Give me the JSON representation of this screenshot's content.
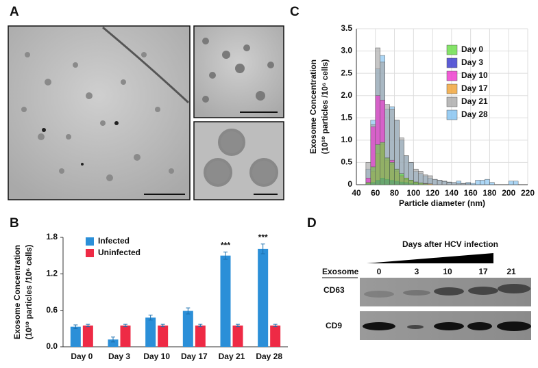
{
  "panel_labels": [
    "A",
    "B",
    "C",
    "D"
  ],
  "chart_data": [
    {
      "type": "bar",
      "ylabel": [
        "Exosome Concentration",
        "(10¹⁰ particles /10⁶ cells)"
      ],
      "categories": [
        "Day 0",
        "Day 3",
        "Day 10",
        "Day 17",
        "Day 21",
        "Day 28"
      ],
      "series": [
        {
          "name": "Infected",
          "color": "#2b8fd8",
          "values": [
            0.33,
            0.12,
            0.48,
            0.59,
            1.5,
            1.61
          ],
          "errors": [
            0.03,
            0.04,
            0.04,
            0.05,
            0.06,
            0.08
          ]
        },
        {
          "name": "Uninfected",
          "color": "#ee2a45",
          "values": [
            0.35,
            0.35,
            0.35,
            0.35,
            0.35,
            0.35
          ],
          "errors": [
            0.02,
            0.02,
            0.02,
            0.02,
            0.02,
            0.02
          ]
        }
      ],
      "annotations": [
        {
          "category": "Day 21",
          "text": "***"
        },
        {
          "category": "Day 28",
          "text": "***"
        }
      ],
      "ylim": [
        0,
        1.8
      ],
      "yticks": [
        {
          "value": 0,
          "label": "0.0"
        },
        0.6,
        1.2,
        1.8
      ],
      "legend": "upper left"
    },
    {
      "type": "histogram",
      "xlabel": "Particle diameter (nm)",
      "ylabel": [
        "Exosome Concentration",
        "(10¹⁰ particles /10⁶ cells)"
      ],
      "bins": [
        50,
        55,
        60,
        65,
        70,
        75,
        80,
        85,
        90,
        95,
        100,
        105,
        110,
        115,
        120,
        125,
        130,
        135,
        140,
        145,
        150,
        155,
        160,
        165,
        170,
        175,
        180,
        185,
        190,
        195,
        200,
        205,
        210
      ],
      "series": [
        {
          "name": "Day 0",
          "color": "#66dd44",
          "values": [
            0.05,
            0.4,
            0.9,
            0.95,
            0.6,
            0.5,
            0.35,
            0.25,
            0.15,
            0.1,
            0.06,
            0.04,
            0.02,
            0,
            0,
            0,
            0,
            0,
            0,
            0,
            0,
            0,
            0,
            0,
            0,
            0,
            0,
            0,
            0,
            0,
            0,
            0
          ]
        },
        {
          "name": "Day 3",
          "color": "#3333cc",
          "values": [
            0.02,
            0.05,
            0.1,
            0.15,
            0.12,
            0.1,
            0.08,
            0.06,
            0.05,
            0.03,
            0.02,
            0,
            0,
            0,
            0,
            0,
            0,
            0,
            0,
            0,
            0,
            0,
            0,
            0,
            0,
            0,
            0,
            0,
            0,
            0,
            0,
            0
          ]
        },
        {
          "name": "Day 10",
          "color": "#ee33cc",
          "values": [
            0.15,
            1.3,
            2.0,
            1.9,
            0.6,
            0.55,
            0.35,
            0.2,
            0.12,
            0.08,
            0.05,
            0.03,
            0.02,
            0,
            0,
            0,
            0,
            0,
            0,
            0,
            0,
            0,
            0,
            0,
            0,
            0,
            0,
            0,
            0,
            0,
            0,
            0
          ]
        },
        {
          "name": "Day 17",
          "color": "#f0a030",
          "values": [
            0.05,
            0.3,
            0.7,
            0.9,
            0.55,
            0.45,
            0.3,
            0.2,
            0.15,
            0.1,
            0.06,
            0.04,
            0.03,
            0.02,
            0,
            0,
            0,
            0,
            0,
            0,
            0,
            0,
            0,
            0,
            0,
            0,
            0,
            0,
            0,
            0,
            0,
            0
          ]
        },
        {
          "name": "Day 21",
          "color": "#a8a8a8",
          "values": [
            0.5,
            1.35,
            3.07,
            2.75,
            1.8,
            1.7,
            1.45,
            1.05,
            0.65,
            0.5,
            0.35,
            0.3,
            0.22,
            0.2,
            0.12,
            0.1,
            0.07,
            0.05,
            0.05,
            0.03,
            0.02,
            0.02,
            0,
            0,
            0,
            0,
            0,
            0,
            0,
            0,
            0,
            0
          ]
        },
        {
          "name": "Day 28",
          "color": "#80c0f0",
          "values": [
            0.35,
            1.45,
            2.6,
            2.9,
            1.7,
            1.75,
            1.45,
            1.0,
            0.65,
            0.5,
            0.3,
            0.25,
            0.2,
            0.15,
            0.12,
            0.1,
            0.08,
            0.06,
            0.05,
            0.08,
            0.03,
            0.05,
            0.03,
            0.1,
            0.1,
            0.12,
            0.05,
            0,
            0,
            0,
            0.08,
            0.08
          ]
        }
      ],
      "xlim": [
        40,
        220
      ],
      "xticks": [
        40,
        60,
        80,
        100,
        120,
        140,
        160,
        180,
        200,
        220
      ],
      "ylim": [
        0,
        3.5
      ],
      "yticks": [
        0,
        0.5,
        {
          "value": 1,
          "label": "1.0"
        },
        1.5,
        {
          "value": 2,
          "label": "2.0"
        },
        2.5,
        {
          "value": 3,
          "label": "3.0"
        },
        3.5
      ],
      "grid": true,
      "legend": "upper right"
    }
  ],
  "blot": {
    "title": "Days after HCV infection",
    "row_label": "Exosome",
    "days": [
      "0",
      "3",
      "10",
      "17",
      "21"
    ],
    "markers": [
      "CD63",
      "CD9"
    ]
  }
}
